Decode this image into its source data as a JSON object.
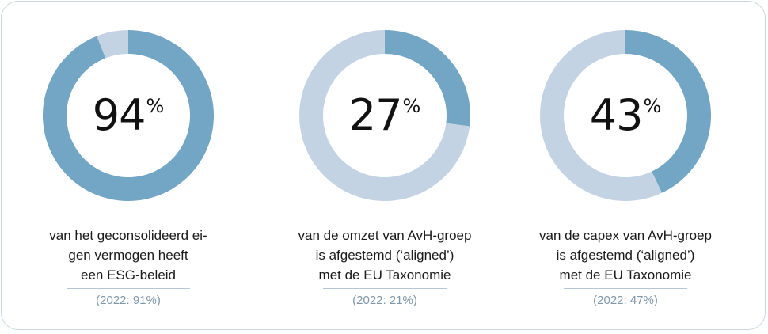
{
  "colors": {
    "filled": "#73a5c4",
    "remainder": "#c3d3e3",
    "prior_text": "#7f97ab",
    "border": "#c9d6e2"
  },
  "kpis": [
    {
      "value": "94",
      "unit": "%",
      "caption_lines": [
        "van het geconsolideerd ei-",
        "gen vermogen heeft",
        "een ESG-beleid"
      ],
      "prior": "(2022: 91%)"
    },
    {
      "value": "27",
      "unit": "%",
      "caption_lines": [
        "van de omzet van AvH-groep",
        "is afgestemd (‘aligned’)",
        "met de EU Taxonomie"
      ],
      "prior": "(2022: 21%)"
    },
    {
      "value": "43",
      "unit": "%",
      "caption_lines": [
        "van de capex van AvH-groep",
        "is afgestemd (‘aligned’)",
        "met de EU Taxonomie"
      ],
      "prior": "(2022: 47%)"
    }
  ],
  "chart_data": [
    {
      "type": "pie",
      "categories": [
        "",
        ""
      ],
      "values": [
        94,
        6
      ]
    },
    {
      "type": "pie",
      "categories": [
        "",
        ""
      ],
      "values": [
        27,
        73
      ]
    },
    {
      "type": "pie",
      "categories": [
        "",
        ""
      ],
      "values": [
        43,
        57
      ]
    }
  ]
}
